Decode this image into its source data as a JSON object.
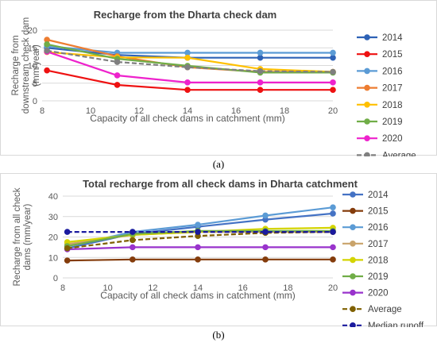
{
  "captions": {
    "a": "(a)",
    "b": "(b)"
  },
  "chart_data": [
    {
      "type": "line",
      "title": "Recharge from the Dharta check dam",
      "xlabel": "Capacity of all check dams in catchment (mm)",
      "ylabel_lines": [
        "Recharge from",
        "downstream check dam",
        "(mm/year)"
      ],
      "xlim": [
        8,
        20
      ],
      "ylim": [
        0,
        20
      ],
      "xticks": [
        8,
        10,
        12,
        14,
        16,
        18,
        20
      ],
      "yticks": [
        0,
        5,
        10,
        15,
        20
      ],
      "grid": "horizontal",
      "legend": "right",
      "x": [
        8.2,
        11.1,
        14,
        17,
        20
      ],
      "series": [
        {
          "name": "2014",
          "color": "#2e62b6",
          "dash": false,
          "values": [
            15.0,
            13.0,
            12.2,
            12.2,
            12.2
          ]
        },
        {
          "name": "2015",
          "color": "#ee1111",
          "dash": false,
          "values": [
            8.6,
            4.5,
            3.1,
            3.1,
            3.1
          ]
        },
        {
          "name": "2016",
          "color": "#5b9bd5",
          "dash": false,
          "values": [
            15.5,
            13.6,
            13.6,
            13.6,
            13.6
          ]
        },
        {
          "name": "2017",
          "color": "#ed7d31",
          "dash": false,
          "values": [
            17.3,
            12.6,
            9.5,
            8.2,
            8.2
          ]
        },
        {
          "name": "2018",
          "color": "#ffc000",
          "dash": false,
          "values": [
            13.8,
            12.3,
            12.2,
            9.0,
            8.2
          ]
        },
        {
          "name": "2019",
          "color": "#70ad47",
          "dash": false,
          "values": [
            16.0,
            11.9,
            9.9,
            8.0,
            8.0
          ]
        },
        {
          "name": "2020",
          "color": "#ee22cc",
          "dash": false,
          "values": [
            13.9,
            7.2,
            5.2,
            5.2,
            5.2
          ]
        },
        {
          "name": "Average",
          "color": "#7f7f7f",
          "dash": true,
          "values": [
            14.2,
            11.0,
            9.5,
            8.4,
            8.2
          ]
        }
      ]
    },
    {
      "type": "line",
      "title": "Total recharge from all check dams in Dharta catchment",
      "xlabel": "Capacity of all check dams in catchment (mm)",
      "ylabel_lines": [
        "Recharge from all check",
        "dams  (mm/year)"
      ],
      "xlim": [
        8,
        20
      ],
      "ylim": [
        0,
        40
      ],
      "xticks": [
        8,
        10,
        12,
        14,
        16,
        18,
        20
      ],
      "yticks": [
        0,
        10,
        20,
        30,
        40
      ],
      "grid": "horizontal",
      "legend": "right",
      "x": [
        8.2,
        11.1,
        14,
        17,
        20
      ],
      "series": [
        {
          "name": "2014",
          "color": "#4472c4",
          "dash": false,
          "values": [
            14.5,
            21.5,
            25.0,
            28.5,
            31.5
          ]
        },
        {
          "name": "2015",
          "color": "#843c0c",
          "dash": false,
          "values": [
            8.5,
            9.0,
            9.0,
            9.0,
            9.0
          ]
        },
        {
          "name": "2016",
          "color": "#5b9bd5",
          "dash": false,
          "values": [
            15.5,
            22.5,
            26.0,
            30.5,
            34.5
          ]
        },
        {
          "name": "2017",
          "color": "#c9a36a",
          "dash": false,
          "values": [
            16.5,
            21.0,
            22.5,
            22.5,
            22.5
          ]
        },
        {
          "name": "2018",
          "color": "#d4d400",
          "dash": false,
          "values": [
            17.5,
            21.0,
            22.5,
            24.0,
            24.5
          ]
        },
        {
          "name": "2019",
          "color": "#70ad47",
          "dash": false,
          "values": [
            15.5,
            21.5,
            23.0,
            23.0,
            23.0
          ]
        },
        {
          "name": "2020",
          "color": "#9933cc",
          "dash": false,
          "values": [
            14.0,
            15.0,
            15.0,
            15.0,
            15.0
          ]
        },
        {
          "name": "Average",
          "color": "#7f6000",
          "dash": true,
          "values": [
            14.5,
            18.5,
            20.5,
            22.0,
            22.5
          ]
        },
        {
          "name": "Median runoff",
          "color": "#1a1a9e",
          "dash": true,
          "values": [
            22.5,
            22.5,
            22.5,
            22.5,
            22.5
          ]
        }
      ]
    }
  ]
}
